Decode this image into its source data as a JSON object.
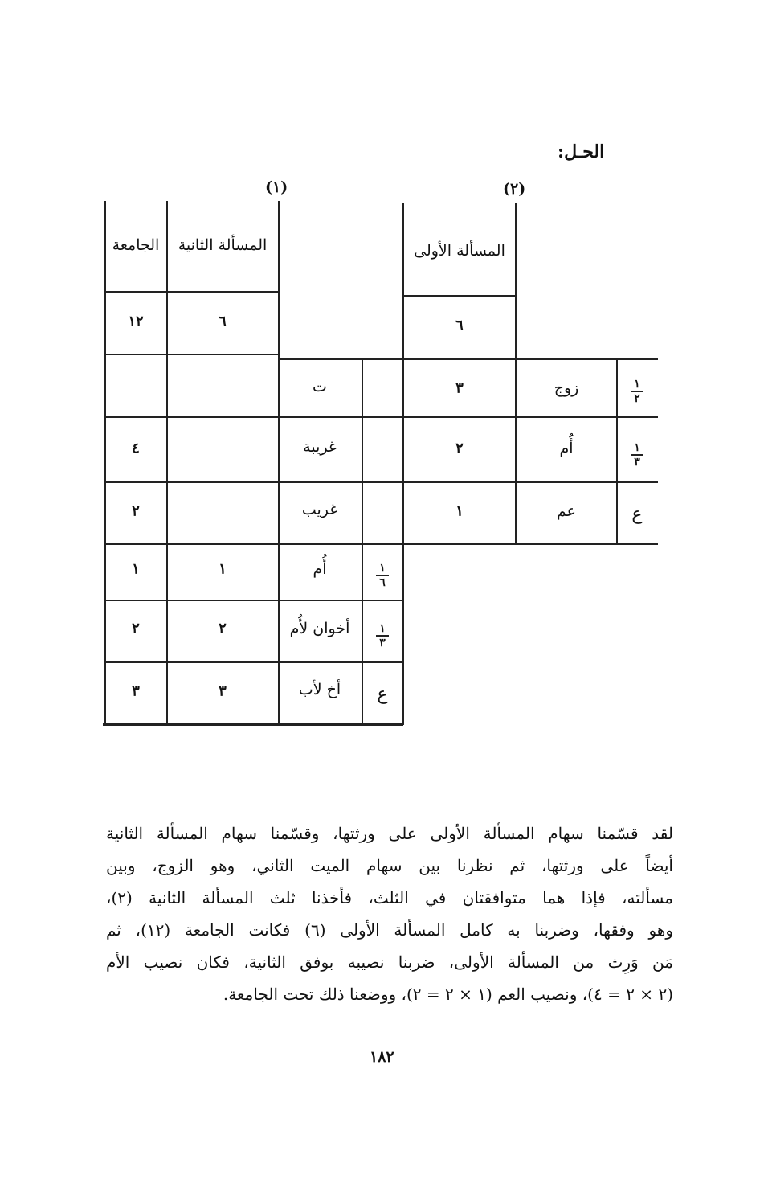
{
  "heading": "الحـل:",
  "labels": {
    "one": "(١)",
    "two": "(٢)"
  },
  "table": {
    "headers": {
      "jamia": "الجامعة",
      "second": "المسألة الثانية",
      "first": "المسألة الأولى"
    },
    "bases": {
      "jamia": "١٢",
      "second": "٦",
      "first": "٦"
    },
    "first_problem": [
      {
        "frac_num": "١",
        "frac_den": "٢",
        "heir": "زوج",
        "share": "٣"
      },
      {
        "frac_num": "١",
        "frac_den": "٣",
        "heir": "أُم",
        "share": "٢"
      },
      {
        "frac": "ع",
        "heir": "عم",
        "share": "١"
      }
    ],
    "second_problem": [
      {
        "heir": "ت",
        "second": "",
        "jamia": ""
      },
      {
        "heir": "غريبة",
        "second": "",
        "jamia": "٤"
      },
      {
        "heir": "غريب",
        "second": "",
        "jamia": "٢"
      },
      {
        "frac_num": "١",
        "frac_den": "٦",
        "heir": "أُم",
        "second": "١",
        "jamia": "١"
      },
      {
        "frac_num": "١",
        "frac_den": "٣",
        "heir": "أخوان لأُم",
        "second": "٢",
        "jamia": "٢"
      },
      {
        "frac": "ع",
        "heir": "أخ لأب",
        "second": "٣",
        "jamia": "٣"
      }
    ]
  },
  "paragraph": [
    "لقد قسّمنا سهام المسألة الأولى على ورثتها، وقسّمنا سهام المسألة الثانية",
    "أيضاً على ورثتها، ثم نظرنا بين سهام الميت الثاني، وهو الزوج، وبين",
    "مسألته، فإذا هما متوافقتان في الثلث، فأخذنا ثلث المسألة الثانية (٢)،",
    "وهو وفقها، وضربنا به كامل المسألة الأولى (٦) فكانت الجامعة (١٢)، ثم",
    "مَن وَرِث من المسألة الأولى، ضربنا نصيبه بوفق الثانية، فكان نصيب الأم",
    "(٢ × ٢ = ٤)، ونصيب العم (١ × ٢ = ٢)، ووضعنا ذلك تحت الجامعة."
  ],
  "page_number": "١٨٢"
}
